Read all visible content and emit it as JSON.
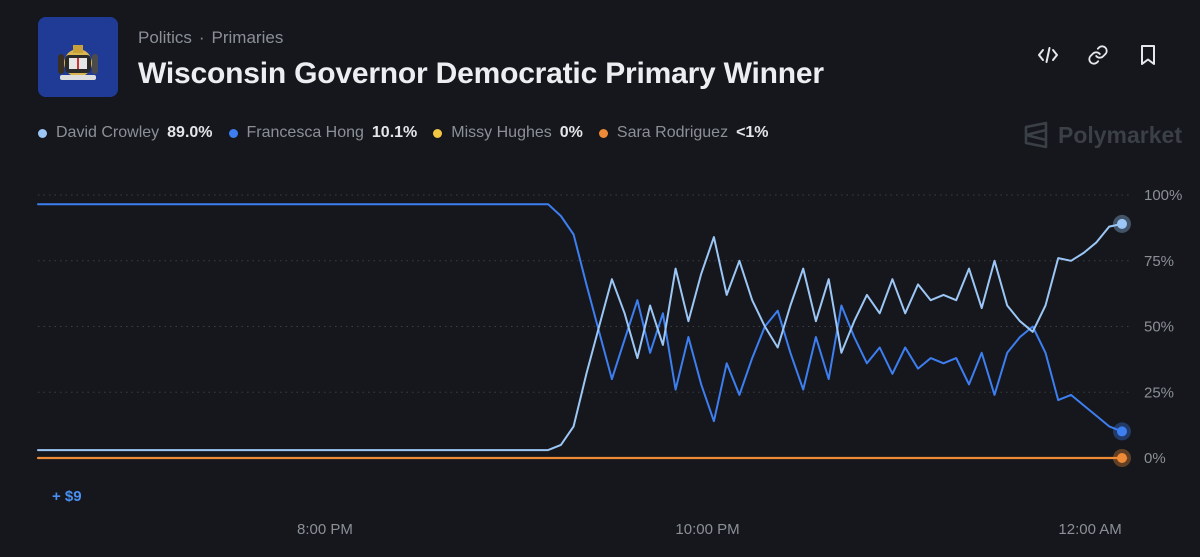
{
  "header": {
    "breadcrumb": [
      "Politics",
      "Primaries"
    ],
    "breadcrumb_sep": "·",
    "title": "Wisconsin Governor Democratic Primary Winner",
    "logo_icon": "wisconsin-flag-icon",
    "actions": [
      {
        "name": "embed-button",
        "icon": "code-icon"
      },
      {
        "name": "copy-link-button",
        "icon": "link-icon"
      },
      {
        "name": "bookmark-button",
        "icon": "bookmark-icon"
      }
    ]
  },
  "legend": [
    {
      "name": "David Crowley",
      "value": "89.0%",
      "color": "#9cc6f5"
    },
    {
      "name": "Francesca Hong",
      "value": "10.1%",
      "color": "#3d7ef0"
    },
    {
      "name": "Missy Hughes",
      "value": "0%",
      "color": "#f2c744"
    },
    {
      "name": "Sara Rodriguez",
      "value": "<1%",
      "color": "#ef8a36"
    }
  ],
  "brand": {
    "name": "Polymarket",
    "icon": "polymarket-logo-icon"
  },
  "delta_label": "+ $9",
  "chart_data": {
    "type": "line",
    "x_domain": [
      "6:30 PM",
      "12:10 AM"
    ],
    "x_ticks": [
      "8:00 PM",
      "10:00 PM",
      "12:00 AM"
    ],
    "y_ticks": [
      "100%",
      "75%",
      "50%",
      "25%",
      "0%"
    ],
    "ylim": [
      0,
      100
    ],
    "grid": "horizontal-dotted",
    "series": [
      {
        "name": "David Crowley",
        "color": "#9cc6f5",
        "x": [
          "6:30 PM",
          "7:00 PM",
          "7:30 PM",
          "8:00 PM",
          "8:30 PM",
          "9:00 PM",
          "9:10 PM",
          "9:14 PM",
          "9:18 PM",
          "9:22 PM",
          "9:26 PM",
          "9:30 PM",
          "9:34 PM",
          "9:38 PM",
          "9:42 PM",
          "9:46 PM",
          "9:50 PM",
          "9:54 PM",
          "9:58 PM",
          "10:02 PM",
          "10:06 PM",
          "10:10 PM",
          "10:14 PM",
          "10:18 PM",
          "10:22 PM",
          "10:26 PM",
          "10:30 PM",
          "10:34 PM",
          "10:38 PM",
          "10:42 PM",
          "10:46 PM",
          "10:50 PM",
          "10:54 PM",
          "10:58 PM",
          "11:02 PM",
          "11:06 PM",
          "11:10 PM",
          "11:14 PM",
          "11:18 PM",
          "11:22 PM",
          "11:26 PM",
          "11:30 PM",
          "11:34 PM",
          "11:38 PM",
          "11:42 PM",
          "11:46 PM",
          "11:50 PM",
          "11:54 PM",
          "11:58 PM",
          "12:02 AM",
          "12:06 AM",
          "12:10 AM"
        ],
        "y": [
          3,
          3,
          3,
          3,
          3,
          3,
          3,
          5,
          12,
          32,
          50,
          68,
          55,
          38,
          58,
          43,
          72,
          52,
          70,
          84,
          62,
          75,
          60,
          50,
          42,
          58,
          72,
          52,
          68,
          40,
          52,
          62,
          55,
          68,
          55,
          66,
          60,
          62,
          60,
          72,
          57,
          75,
          58,
          52,
          48,
          58,
          76,
          75,
          78,
          82,
          88,
          89
        ]
      },
      {
        "name": "Francesca Hong",
        "color": "#3d7ef0",
        "x": [
          "6:30 PM",
          "7:00 PM",
          "7:30 PM",
          "8:00 PM",
          "8:30 PM",
          "9:00 PM",
          "9:10 PM",
          "9:14 PM",
          "9:18 PM",
          "9:22 PM",
          "9:26 PM",
          "9:30 PM",
          "9:34 PM",
          "9:38 PM",
          "9:42 PM",
          "9:46 PM",
          "9:50 PM",
          "9:54 PM",
          "9:58 PM",
          "10:02 PM",
          "10:06 PM",
          "10:10 PM",
          "10:14 PM",
          "10:18 PM",
          "10:22 PM",
          "10:26 PM",
          "10:30 PM",
          "10:34 PM",
          "10:38 PM",
          "10:42 PM",
          "10:46 PM",
          "10:50 PM",
          "10:54 PM",
          "10:58 PM",
          "11:02 PM",
          "11:06 PM",
          "11:10 PM",
          "11:14 PM",
          "11:18 PM",
          "11:22 PM",
          "11:26 PM",
          "11:30 PM",
          "11:34 PM",
          "11:38 PM",
          "11:42 PM",
          "11:46 PM",
          "11:50 PM",
          "11:54 PM",
          "11:58 PM",
          "12:02 AM",
          "12:06 AM",
          "12:10 AM"
        ],
        "y": [
          96.5,
          96.5,
          96.5,
          96.5,
          96.5,
          96.5,
          96.5,
          92,
          85,
          66,
          48,
          30,
          45,
          60,
          40,
          55,
          26,
          46,
          28,
          14,
          36,
          24,
          38,
          50,
          56,
          40,
          26,
          46,
          30,
          58,
          46,
          36,
          42,
          32,
          42,
          34,
          38,
          36,
          38,
          28,
          40,
          24,
          40,
          46,
          50,
          40,
          22,
          24,
          20,
          16,
          12,
          10.1
        ]
      },
      {
        "name": "Sara Rodriguez",
        "color": "#ef8a36",
        "x": [
          "6:30 PM",
          "12:10 AM"
        ],
        "y": [
          0,
          0
        ]
      }
    ]
  }
}
